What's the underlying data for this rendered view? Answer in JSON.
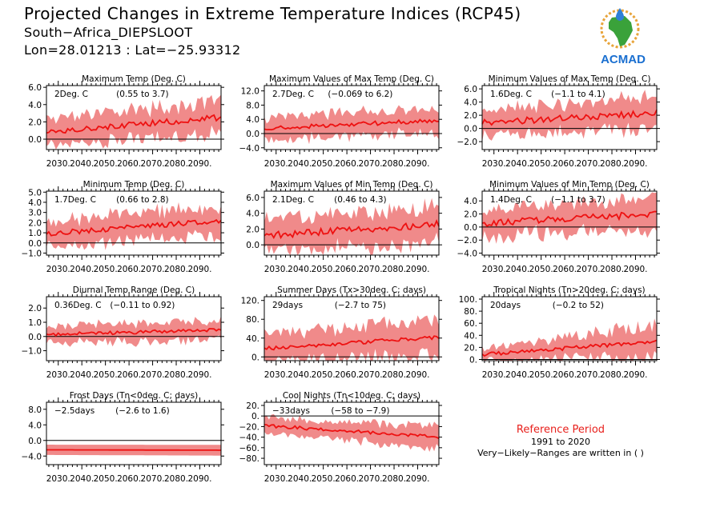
{
  "header": {
    "title": "Projected Changes in Extreme Temperature Indices (RCP45)",
    "location": "South−Africa_DIEPSLOOT",
    "coords": "Lon=28.01213 : Lat=−25.93312"
  },
  "logo": {
    "text": "ACMAD"
  },
  "reference": {
    "title": "Reference Period",
    "period": "1991 to 2020",
    "note": "Very−Likely−Ranges are written in ( )"
  },
  "colors": {
    "band": "#f08a8a",
    "line": "#ee1111",
    "text_red": "#e8201c"
  },
  "x_tick_labels": [
    "2030.",
    "2040.",
    "2050.",
    "2060.",
    "2070.",
    "2080.",
    "2090."
  ],
  "chart_data": [
    {
      "type": "area",
      "title": "Maximum Temp (Deg. C)",
      "change": "2Deg. C",
      "range": "(0.55 to 3.7)",
      "ylim": [
        -1.2,
        6.2
      ],
      "yticks": [
        6,
        4,
        2,
        0
      ],
      "ytick_labels": [
        "6.0",
        "4.0",
        "2.0",
        "0.0"
      ],
      "trend": [
        0.9,
        2.5
      ],
      "band": [
        1.6,
        1.8
      ],
      "noise": 0.35
    },
    {
      "type": "area",
      "title": "Maximum Values of Max Temp (Deg. C)",
      "change": "2.7Deg. C",
      "range": "(−0.069 to 6.2)",
      "ylim": [
        -4.5,
        13.5
      ],
      "yticks": [
        12,
        8,
        4,
        0,
        -4
      ],
      "ytick_labels": [
        "12.0",
        "8.0",
        "4.0",
        "0.0",
        "−4.0"
      ],
      "trend": [
        1.5,
        3.7
      ],
      "band": [
        3.0,
        3.6
      ],
      "noise": 0.6
    },
    {
      "type": "area",
      "title": "Minimum Values of Max Temp (Deg. C)",
      "change": "1.6Deg. C",
      "range": "(−1.1 to 4.1)",
      "ylim": [
        -3.2,
        6.5
      ],
      "yticks": [
        6,
        4,
        2,
        0,
        -2
      ],
      "ytick_labels": [
        "6.0",
        "4.0",
        "2.0",
        "0.0",
        "−2.0"
      ],
      "trend": [
        0.8,
        2.4
      ],
      "band": [
        2.0,
        2.4
      ],
      "noise": 0.5
    },
    {
      "type": "area",
      "title": "Minimum Temp (Deg. C)",
      "change": "1.7Deg. C",
      "range": "(0.66 to 2.8)",
      "ylim": [
        -1.2,
        5.1
      ],
      "yticks": [
        5,
        4,
        3,
        2,
        1,
        0,
        -1
      ],
      "ytick_labels": [
        "5.0",
        "4.0",
        "3.0",
        "2.0",
        "1.0",
        "0.0",
        "−1.0"
      ],
      "trend": [
        0.9,
        2.2
      ],
      "band": [
        1.2,
        1.5
      ],
      "noise": 0.25
    },
    {
      "type": "area",
      "title": "Maximum Values of Min Temp (Deg. C)",
      "change": "2.1Deg. C",
      "range": "(0.46 to 4.3)",
      "ylim": [
        -1.3,
        6.8
      ],
      "yticks": [
        6,
        4,
        2,
        0
      ],
      "ytick_labels": [
        "6.0",
        "4.0",
        "2.0",
        "0.0"
      ],
      "trend": [
        1.2,
        2.6
      ],
      "band": [
        2.0,
        2.3
      ],
      "noise": 0.45
    },
    {
      "type": "area",
      "title": "Minimum Values of Min Temp (Deg. C)",
      "change": "1.4Deg. C",
      "range": "(−1.1 to 3.7)",
      "ylim": [
        -4.3,
        5.5
      ],
      "yticks": [
        4,
        2,
        0,
        -2,
        -4
      ],
      "ytick_labels": [
        "4.0",
        "2.0",
        "0.0",
        "−2.0",
        "−4.0"
      ],
      "trend": [
        0.6,
        2.0
      ],
      "band": [
        2.0,
        2.3
      ],
      "noise": 0.5
    },
    {
      "type": "area",
      "title": "Diurnal Temp Range (Deg. C)",
      "change": "0.36Deg. C",
      "range": "(−0.11 to 0.92)",
      "ylim": [
        -1.7,
        2.8
      ],
      "yticks": [
        2,
        1,
        0,
        -1
      ],
      "ytick_labels": [
        "2.0",
        "1.0",
        "0.0",
        "−1.0"
      ],
      "trend": [
        0.15,
        0.45
      ],
      "band": [
        0.6,
        0.7
      ],
      "noise": 0.12
    },
    {
      "type": "area",
      "title": "Summer Days (Tx>30deg. C; days)",
      "change": "29days",
      "range": "(−2.7 to 75)",
      "ylim": [
        -8,
        128
      ],
      "yticks": [
        120,
        80,
        40,
        0
      ],
      "ytick_labels": [
        "120.",
        "80.",
        "40.",
        "0."
      ],
      "trend": [
        18,
        42
      ],
      "band": [
        28,
        40
      ],
      "noise": 4
    },
    {
      "type": "area",
      "title": "Tropical Nights (Tn>20deg. C; days)",
      "change": "20days",
      "range": "(−0.2 to 52)",
      "ylim": [
        -2,
        104
      ],
      "yticks": [
        100,
        80,
        60,
        40,
        20,
        0
      ],
      "ytick_labels": [
        "100.",
        "80.",
        "60.",
        "40.",
        "20.",
        "0."
      ],
      "trend": [
        8,
        30
      ],
      "band": [
        10,
        28
      ],
      "noise": 3
    },
    {
      "type": "area",
      "title": "Frost Days (Tn<0deg. C; days)",
      "change": "−2.5days",
      "range": "(−2.6 to 1.6)",
      "ylim": [
        -6.2,
        9.8
      ],
      "yticks": [
        8,
        4,
        0,
        -4
      ],
      "ytick_labels": [
        "8.0",
        "4.0",
        "0.0",
        "−4.0"
      ],
      "trend": [
        -2.4,
        -2.5
      ],
      "band": [
        2.2,
        2.3
      ],
      "noise": 0.05,
      "flat": true
    },
    {
      "type": "area",
      "title": "Cool Nights (Tn<10deg. C; days)",
      "change": "−33days",
      "range": "(−58 to −7.9)",
      "ylim": [
        -92,
        26
      ],
      "yticks": [
        20,
        0,
        -20,
        -40,
        -60,
        -80
      ],
      "ytick_labels": [
        "20.",
        "0.",
        "−20.",
        "−40.",
        "−60.",
        "−80."
      ],
      "trend": [
        -18,
        -40
      ],
      "band": [
        14,
        22
      ],
      "noise": 3
    }
  ]
}
